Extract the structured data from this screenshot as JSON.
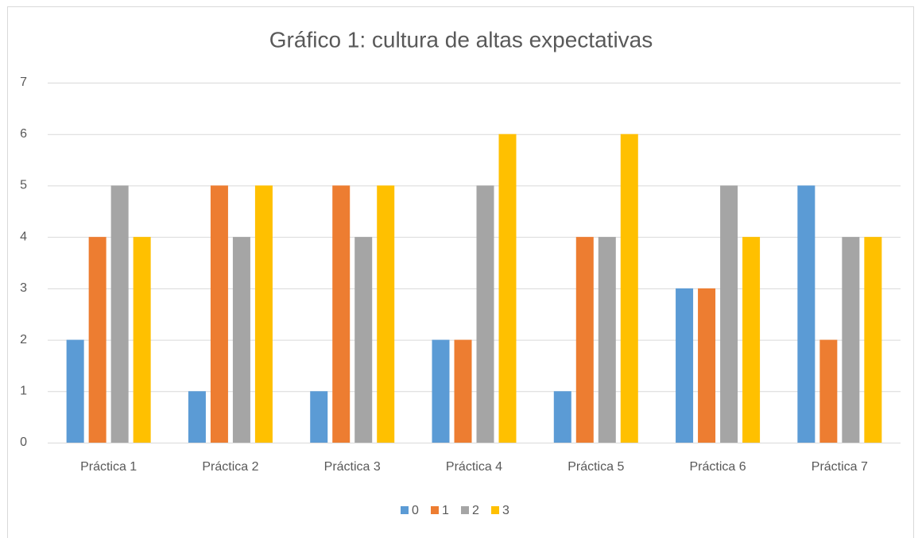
{
  "chart_data": {
    "type": "bar",
    "title": "Gráfico 1: cultura de altas expectativas",
    "categories": [
      "Práctica 1",
      "Práctica 2",
      "Práctica 3",
      "Práctica 4",
      "Práctica 5",
      "Práctica 6",
      "Práctica 7"
    ],
    "series": [
      {
        "name": "0",
        "color": "#5b9bd5",
        "values": [
          2,
          1,
          1,
          2,
          1,
          3,
          5
        ]
      },
      {
        "name": "1",
        "color": "#ed7d31",
        "values": [
          4,
          5,
          5,
          2,
          4,
          3,
          2
        ]
      },
      {
        "name": "2",
        "color": "#a5a5a5",
        "values": [
          5,
          4,
          4,
          5,
          4,
          5,
          4
        ]
      },
      {
        "name": "3",
        "color": "#ffc000",
        "values": [
          4,
          5,
          5,
          6,
          6,
          4,
          4
        ]
      }
    ],
    "ylim": [
      0,
      7
    ],
    "yticks": [
      0,
      1,
      2,
      3,
      4,
      5,
      6,
      7
    ],
    "grid": true,
    "legend": "bottom"
  }
}
